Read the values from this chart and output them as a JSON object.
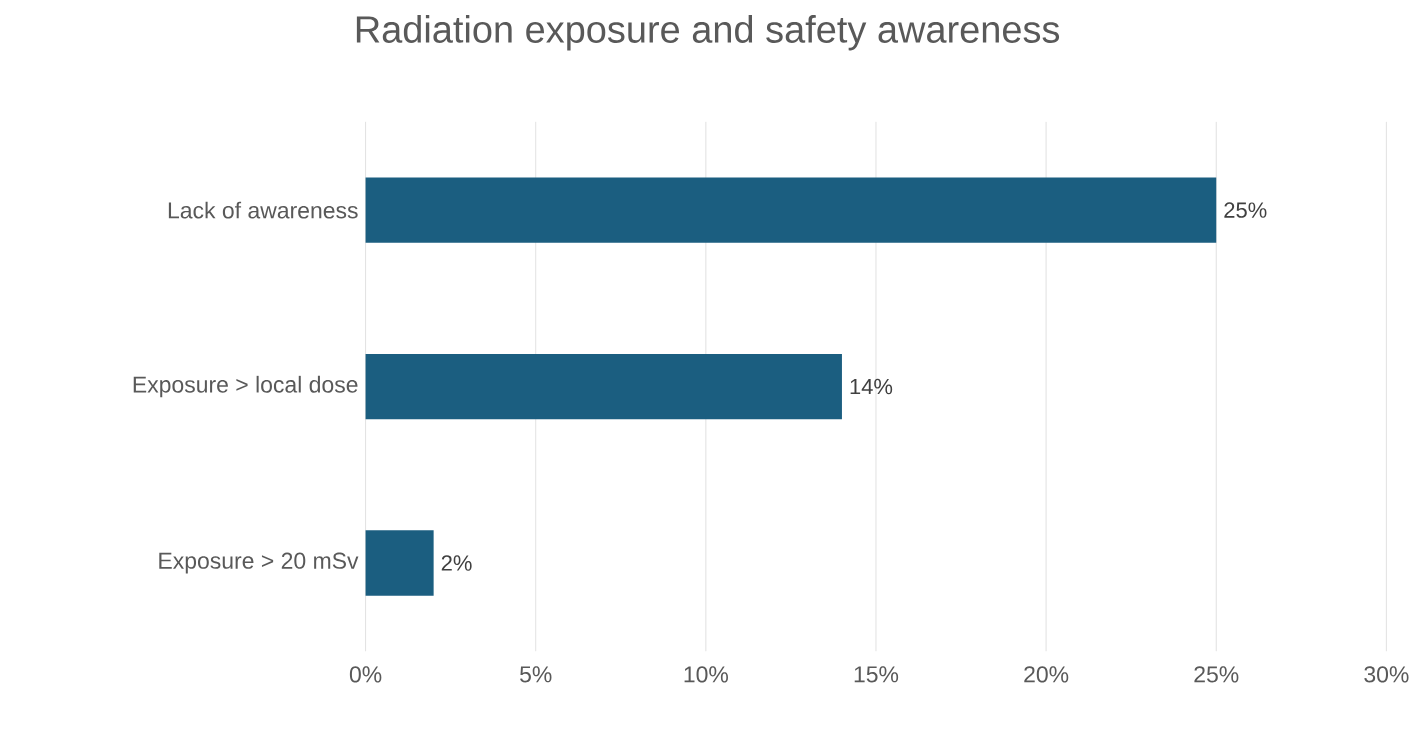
{
  "chart_data": {
    "type": "bar",
    "orientation": "horizontal",
    "title": "Radiation exposure and safety awareness",
    "categories": [
      "Lack of awareness",
      "Exposure > local dose",
      "Exposure > 20 mSv"
    ],
    "values": [
      25,
      14,
      2
    ],
    "value_labels": [
      "25%",
      "14%",
      "2%"
    ],
    "color": "#1b5e80",
    "xlim": [
      0,
      30
    ],
    "xticks": [
      {
        "value": 0,
        "label": "0%"
      },
      {
        "value": 5,
        "label": "5%"
      },
      {
        "value": 10,
        "label": "10%"
      },
      {
        "value": 15,
        "label": "15%"
      },
      {
        "value": 20,
        "label": "20%"
      },
      {
        "value": 25,
        "label": "25%"
      },
      {
        "value": 30,
        "label": "30%"
      }
    ],
    "grid": "x"
  }
}
